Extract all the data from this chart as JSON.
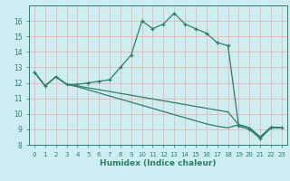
{
  "xlabel": "Humidex (Indice chaleur)",
  "bg_color": "#cceef0",
  "grid_color": "#f0b8b8",
  "line_color": "#2e7d6e",
  "xlim": [
    -0.5,
    23.5
  ],
  "ylim": [
    8,
    17
  ],
  "yticks": [
    8,
    9,
    10,
    11,
    12,
    13,
    14,
    15,
    16
  ],
  "xticks": [
    0,
    1,
    2,
    3,
    4,
    5,
    6,
    7,
    8,
    9,
    10,
    11,
    12,
    13,
    14,
    15,
    16,
    17,
    18,
    19,
    20,
    21,
    22,
    23
  ],
  "line1_x": [
    0,
    1,
    2,
    3,
    4,
    5,
    6,
    7,
    8,
    9,
    10,
    11,
    12,
    13,
    14,
    15,
    16,
    17,
    18,
    19,
    20,
    21,
    22,
    23
  ],
  "line1_y": [
    12.7,
    11.8,
    12.4,
    11.9,
    11.9,
    12.0,
    12.1,
    12.2,
    13.0,
    13.8,
    16.0,
    15.5,
    15.8,
    16.5,
    15.8,
    15.5,
    15.2,
    14.6,
    14.4,
    9.2,
    9.0,
    8.4,
    9.1,
    9.1
  ],
  "line2_x": [
    0,
    1,
    2,
    3,
    4,
    5,
    6,
    7,
    8,
    9,
    10,
    11,
    12,
    13,
    14,
    15,
    16,
    17,
    18,
    19,
    20,
    21,
    22,
    23
  ],
  "line2_y": [
    12.7,
    11.8,
    12.4,
    11.9,
    11.8,
    11.68,
    11.56,
    11.44,
    11.32,
    11.2,
    11.08,
    10.96,
    10.84,
    10.72,
    10.6,
    10.48,
    10.36,
    10.24,
    10.12,
    9.3,
    9.1,
    8.5,
    9.15,
    9.1
  ],
  "line3_x": [
    0,
    1,
    2,
    3,
    4,
    5,
    6,
    7,
    8,
    9,
    10,
    11,
    12,
    13,
    14,
    15,
    16,
    17,
    18,
    19,
    20,
    21,
    22,
    23
  ],
  "line3_y": [
    12.7,
    11.8,
    12.4,
    11.9,
    11.75,
    11.55,
    11.35,
    11.15,
    10.95,
    10.75,
    10.55,
    10.35,
    10.15,
    9.95,
    9.75,
    9.55,
    9.35,
    9.2,
    9.1,
    9.3,
    9.1,
    8.5,
    9.15,
    9.1
  ]
}
